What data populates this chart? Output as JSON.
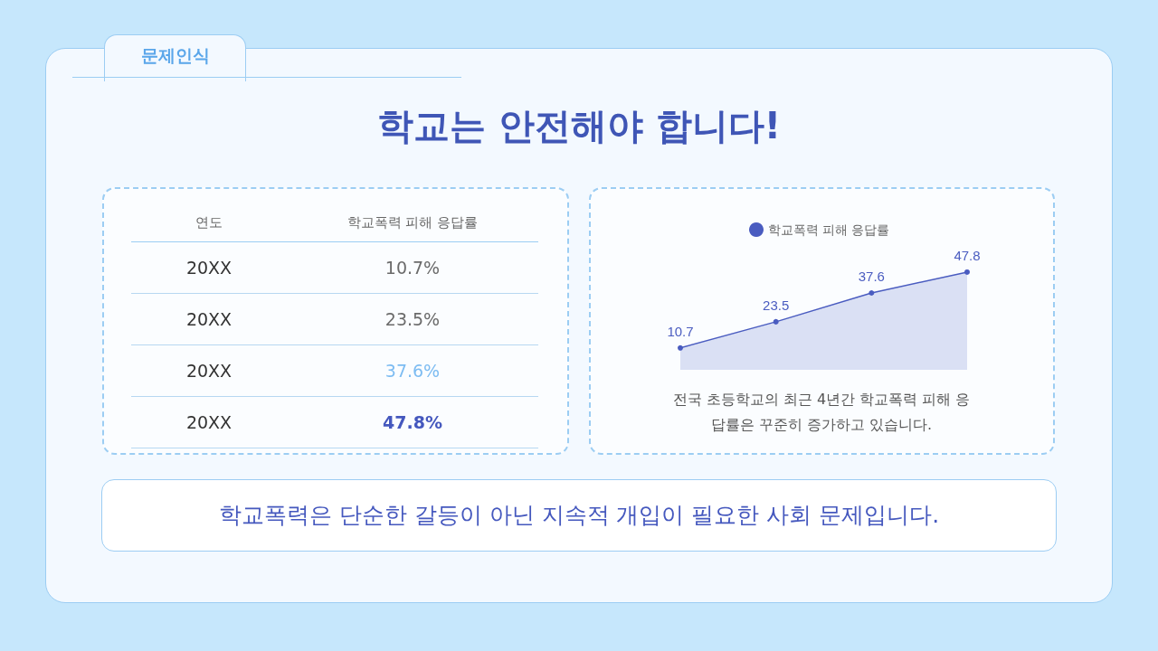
{
  "chart_data": [
    {
      "type": "other",
      "title": "학교는 안전해야 합니다!",
      "xlabel": "연도",
      "ylabel": "학교폭력 피해 응답률",
      "categories": [
        "20XX",
        "20XX",
        "20XX",
        "20XX"
      ],
      "value_labels": [
        "10.7%",
        "23.5%",
        "37.6%",
        "47.8%"
      ],
      "annotations": [
        "문제인식",
        "학교폭력은 단순한 갈등이 아닌 지속적 개입이 필요한 사회 문제입니다."
      ]
    },
    {
      "type": "area",
      "categories": [
        null,
        null,
        null,
        null
      ],
      "series": [
        {
          "name": "학교폭력 피해 응답률",
          "color": "#4a5cc0",
          "values": [
            10.7,
            23.5,
            37.6,
            47.8
          ]
        }
      ],
      "data_labels": true,
      "legend": "top",
      "marker": "circle",
      "grid": false,
      "annotations": [
        "전국 초등학교의 최근 4년간 학교폭력 피해 응답률은 꾸준히 증가하고 있습니다."
      ]
    }
  ]
}
